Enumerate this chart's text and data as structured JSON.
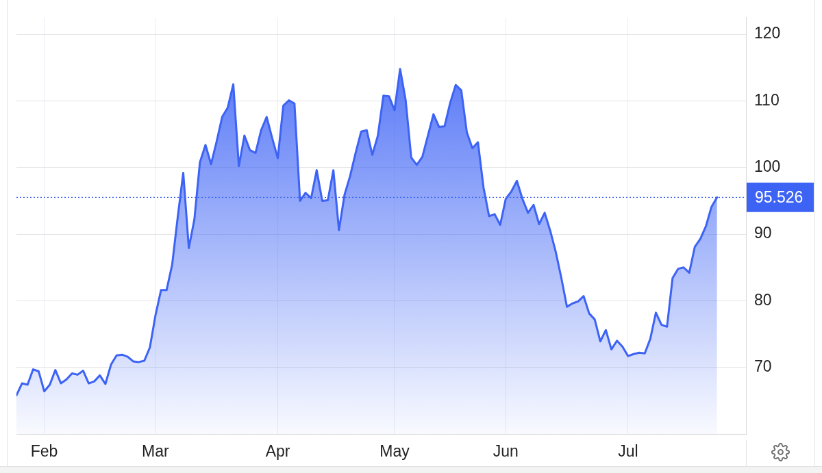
{
  "chart_data": {
    "type": "area",
    "categories": [
      null,
      null,
      null,
      null,
      null,
      "Feb",
      null,
      null,
      null,
      null,
      null,
      null,
      null,
      null,
      null,
      null,
      null,
      null,
      null,
      null,
      null,
      null,
      null,
      null,
      null,
      "Mar",
      null,
      null,
      null,
      null,
      null,
      null,
      null,
      null,
      null,
      null,
      null,
      null,
      null,
      null,
      null,
      null,
      null,
      null,
      null,
      null,
      null,
      "Apr",
      null,
      null,
      null,
      null,
      null,
      null,
      null,
      null,
      null,
      null,
      null,
      null,
      null,
      null,
      null,
      null,
      null,
      null,
      null,
      null,
      "May",
      null,
      null,
      null,
      null,
      null,
      null,
      null,
      null,
      null,
      null,
      null,
      null,
      null,
      null,
      null,
      null,
      null,
      null,
      null,
      "Jun",
      null,
      null,
      null,
      null,
      null,
      null,
      null,
      null,
      null,
      null,
      null,
      null,
      null,
      null,
      null,
      null,
      null,
      null,
      null,
      null,
      null,
      "Jul",
      null,
      null,
      null,
      null,
      null,
      null,
      null,
      null,
      null,
      null,
      null,
      null,
      null,
      null,
      null,
      null
    ],
    "values": [
      65.8,
      67.6,
      67.4,
      69.7,
      69.4,
      66.4,
      67.4,
      69.6,
      67.6,
      68.2,
      69.1,
      68.9,
      69.5,
      67.6,
      67.9,
      68.8,
      67.5,
      70.4,
      71.8,
      71.9,
      71.6,
      70.9,
      70.8,
      71.0,
      73.0,
      77.8,
      81.6,
      81.6,
      85.4,
      92.5,
      99.2,
      87.9,
      92.2,
      100.8,
      103.4,
      100.5,
      103.9,
      107.6,
      109.0,
      112.5,
      100.2,
      104.8,
      102.6,
      102.2,
      105.6,
      107.6,
      104.4,
      101.4,
      109.3,
      110.1,
      109.6,
      95.0,
      96.2,
      95.4,
      99.6,
      95.0,
      95.1,
      99.6,
      90.6,
      95.9,
      98.7,
      102.2,
      105.4,
      105.6,
      101.9,
      104.8,
      110.8,
      110.7,
      108.6,
      114.8,
      110.1,
      101.5,
      100.4,
      101.6,
      104.8,
      108.0,
      106.1,
      106.2,
      109.7,
      112.4,
      111.6,
      105.3,
      102.9,
      103.8,
      97.0,
      92.7,
      93.0,
      91.4,
      95.3,
      96.4,
      98.0,
      95.3,
      93.2,
      94.4,
      91.5,
      93.2,
      90.5,
      87.3,
      83.4,
      79.1,
      79.6,
      79.9,
      80.7,
      78.1,
      77.2,
      73.9,
      75.6,
      72.7,
      74.0,
      73.1,
      71.7,
      72.0,
      72.2,
      72.1,
      74.3,
      78.2,
      76.4,
      76.1,
      83.4,
      84.8,
      85.0,
      84.2,
      88.1,
      89.3,
      91.2,
      94.1,
      95.526
    ],
    "color": "#3d63f5",
    "ylim": [
      60,
      122.5
    ],
    "yticks": [
      70,
      80,
      90,
      100,
      110,
      120
    ],
    "grid": true,
    "marker": "none",
    "ref_lines": [
      {
        "axis": "y",
        "value": 95.526,
        "label": "95.526",
        "color": "#3d63f5",
        "line_style": "dotted"
      }
    ]
  }
}
